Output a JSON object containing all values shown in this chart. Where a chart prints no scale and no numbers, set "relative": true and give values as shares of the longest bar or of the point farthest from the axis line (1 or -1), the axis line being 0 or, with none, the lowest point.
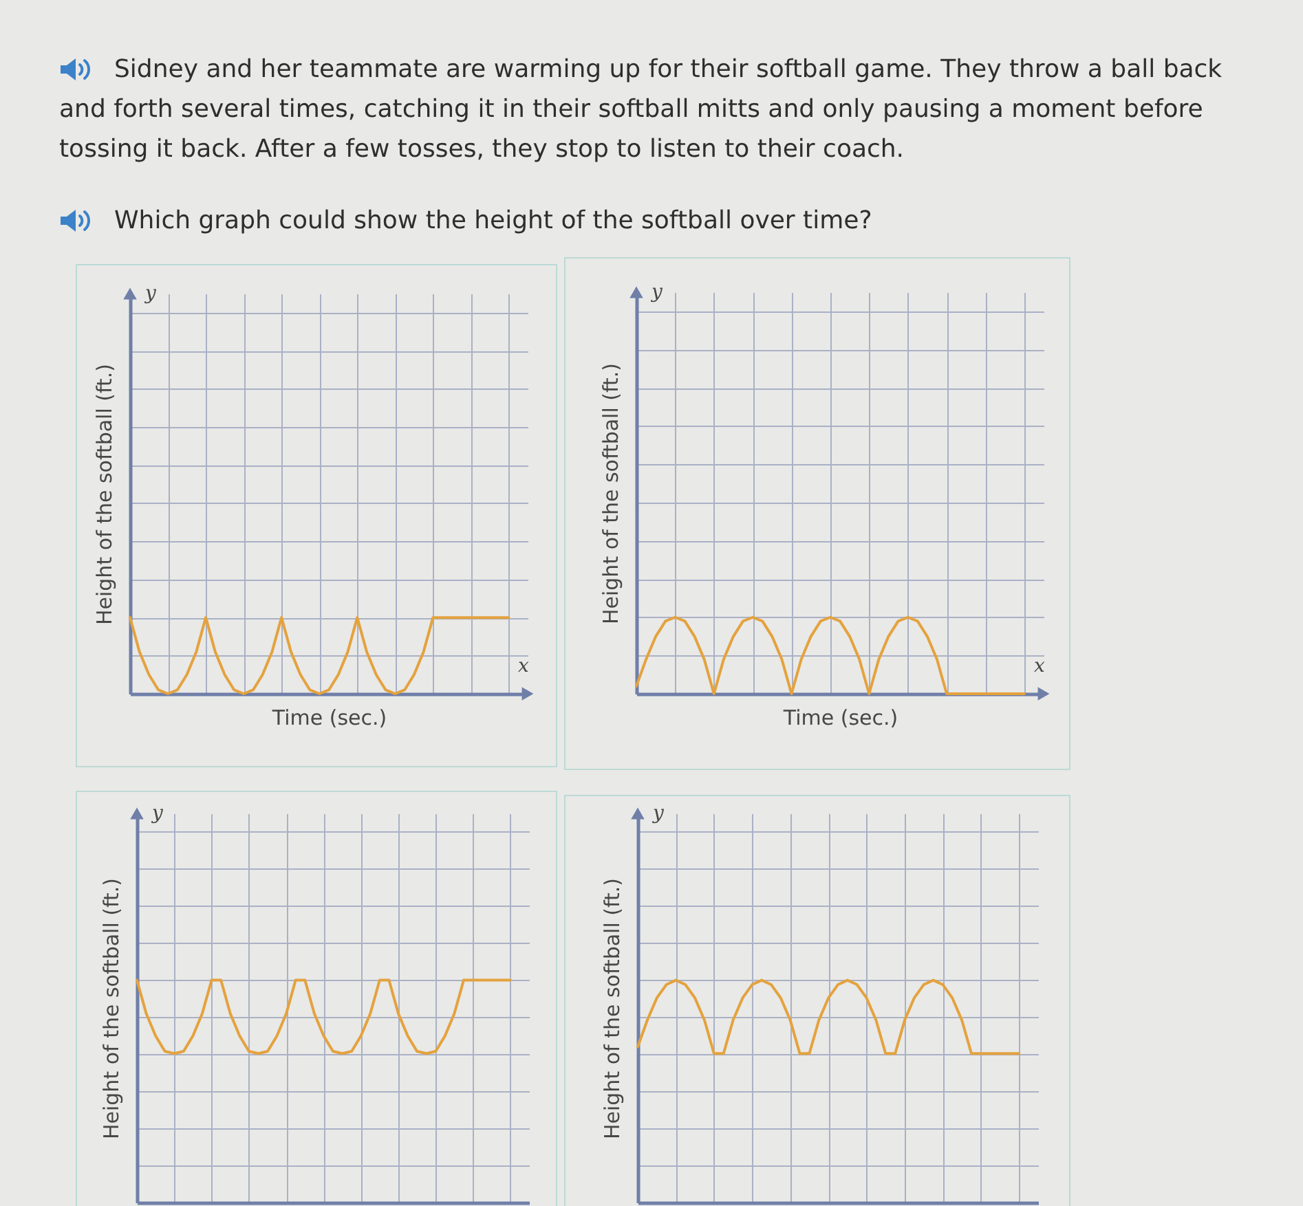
{
  "chart_data": [
    {
      "type": "other",
      "title": "Sidney and her teammate are warming up for their softball game. They throw a ball back and forth several times, catching it in their softball mitts and only pausing a moment before tossing it back. After a few tosses, they stop to listen to their coach.",
      "subtitle": "Which graph could show the height of the softball over time?"
    },
    {
      "type": "line",
      "xlabel": "Time (sec.)",
      "ylabel": "Height of the softball (ft.)",
      "annotations": [
        "y",
        "x"
      ],
      "relative": true,
      "grid": true,
      "color": "#e4a23e",
      "categories": [
        null,
        null,
        null,
        null,
        null,
        null,
        null,
        null,
        null,
        null,
        null,
        null,
        null,
        null,
        null,
        null,
        null,
        null,
        null,
        null,
        null,
        null,
        null,
        null,
        null,
        null,
        null,
        null,
        null,
        null,
        null,
        null,
        null,
        null,
        null,
        null,
        null,
        null,
        null,
        null,
        null
      ],
      "values": [
        1,
        0.55,
        0.25,
        0.05,
        0,
        0.05,
        0.25,
        0.55,
        1,
        0.55,
        0.25,
        0.05,
        0,
        0.05,
        0.25,
        0.55,
        1,
        0.55,
        0.25,
        0.05,
        0,
        0.05,
        0.25,
        0.55,
        1,
        0.55,
        0.25,
        0.05,
        0,
        0.05,
        0.25,
        0.55,
        1,
        1,
        1,
        1,
        1,
        1,
        1,
        1,
        1
      ]
    },
    {
      "type": "line",
      "xlabel": "Time (sec.)",
      "ylabel": "Height of the softball (ft.)",
      "annotations": [
        "y",
        "x"
      ],
      "relative": true,
      "grid": true,
      "color": "#e4a23e",
      "categories": [
        null,
        null,
        null,
        null,
        null,
        null,
        null,
        null,
        null,
        null,
        null,
        null,
        null,
        null,
        null,
        null,
        null,
        null,
        null,
        null,
        null,
        null,
        null,
        null,
        null,
        null,
        null,
        null,
        null,
        null,
        null,
        null,
        null,
        null,
        null,
        null,
        null,
        null,
        null,
        null,
        null
      ],
      "values": [
        0.1,
        0.45,
        0.75,
        0.95,
        1,
        0.95,
        0.75,
        0.45,
        0,
        0.45,
        0.75,
        0.95,
        1,
        0.95,
        0.75,
        0.45,
        0,
        0.45,
        0.75,
        0.95,
        1,
        0.95,
        0.75,
        0.45,
        0,
        0.45,
        0.75,
        0.95,
        1,
        0.95,
        0.75,
        0.45,
        0,
        0,
        0,
        0,
        0,
        0,
        0,
        0,
        0
      ]
    },
    {
      "type": "line",
      "ylabel": "Height of the softball (ft.)",
      "annotations": [
        "y"
      ],
      "relative": true,
      "grid": true,
      "color": "#e4a23e",
      "categories": [
        null,
        null,
        null,
        null,
        null,
        null,
        null,
        null,
        null,
        null,
        null,
        null,
        null,
        null,
        null,
        null,
        null,
        null,
        null,
        null,
        null,
        null,
        null,
        null,
        null,
        null,
        null,
        null,
        null,
        null,
        null,
        null,
        null,
        null,
        null,
        null,
        null,
        null,
        null,
        null,
        null
      ],
      "values": [
        1,
        0.85,
        0.75,
        0.68,
        0.67,
        0.68,
        0.75,
        0.85,
        1,
        1,
        0.85,
        0.75,
        0.68,
        0.67,
        0.68,
        0.75,
        0.85,
        1,
        1,
        0.85,
        0.75,
        0.68,
        0.67,
        0.68,
        0.75,
        0.85,
        1,
        1,
        0.85,
        0.75,
        0.68,
        0.67,
        0.68,
        0.75,
        0.85,
        1,
        1,
        1,
        1,
        1,
        1
      ]
    },
    {
      "type": "line",
      "ylabel": "Height of the softball (ft.)",
      "annotations": [
        "y"
      ],
      "relative": true,
      "grid": true,
      "color": "#e4a23e",
      "categories": [
        null,
        null,
        null,
        null,
        null,
        null,
        null,
        null,
        null,
        null,
        null,
        null,
        null,
        null,
        null,
        null,
        null,
        null,
        null,
        null,
        null,
        null,
        null,
        null,
        null,
        null,
        null,
        null,
        null,
        null,
        null,
        null,
        null,
        null,
        null,
        null,
        null,
        null,
        null,
        null,
        null
      ],
      "values": [
        0.7,
        0.82,
        0.92,
        0.98,
        1,
        0.98,
        0.92,
        0.82,
        0.67,
        0.67,
        0.82,
        0.92,
        0.98,
        1,
        0.98,
        0.92,
        0.82,
        0.67,
        0.67,
        0.82,
        0.92,
        0.98,
        1,
        0.98,
        0.92,
        0.82,
        0.67,
        0.67,
        0.82,
        0.92,
        0.98,
        1,
        0.98,
        0.92,
        0.82,
        0.67,
        0.67,
        0.67,
        0.67,
        0.67,
        0.67
      ]
    }
  ]
}
